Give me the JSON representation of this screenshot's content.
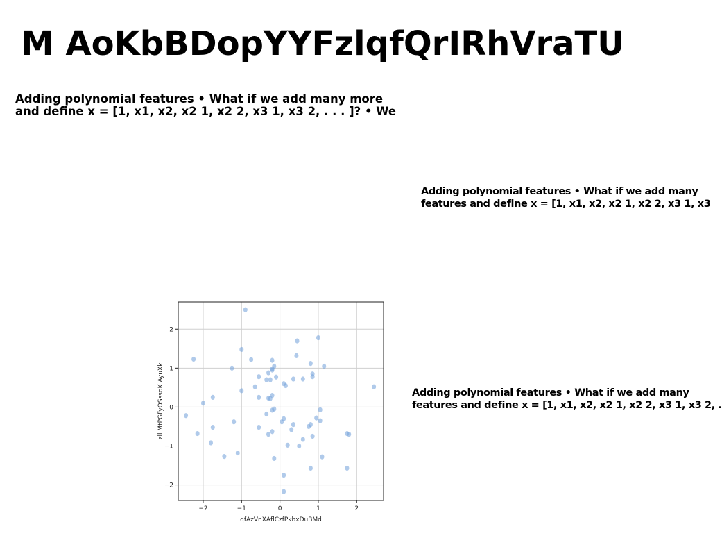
{
  "slide": {
    "title": "M AoKbBDopYYFzlqfQrIRhVraTU"
  },
  "text_blocks": [
    {
      "lines": [
        "Adding polynomial features • What if we add many more",
        "and define x = [1, x1, x2, x2 1, x2 2, x3 1, x3 2, . . . ]? • We"
      ]
    },
    {
      "lines": [
        "Adding polynomial features • What if we add many",
        "features and define x = [1, x1, x2, x2 1, x2 2, x3 1, x3"
      ]
    },
    {
      "lines": [
        "Adding polynomial features • What if we add many",
        "features and define x = [1, x1, x2, x2 1, x2 2, x3 1, x3 2, ."
      ]
    }
  ],
  "chart_data": {
    "type": "scatter",
    "title": "",
    "xlabel": "qfAzVnXAflCzfPkbxDuBMd",
    "ylabel": "zll MtPGFyOSssdK AyuXk",
    "xlim": [
      -2.65,
      2.7
    ],
    "ylim": [
      -2.4,
      2.7
    ],
    "xticks": [
      -2,
      -1,
      0,
      1,
      2
    ],
    "yticks": [
      -2,
      -1,
      0,
      1,
      2
    ],
    "xtick_labels": [
      "−2",
      "−1",
      "0",
      "1",
      "2"
    ],
    "ytick_labels": [
      "−2",
      "−1",
      "0",
      "1",
      "2"
    ],
    "grid": true,
    "marker_color": "#7ba7dc",
    "x": [
      -0.9,
      -1.0,
      -0.75,
      -0.2,
      -0.15,
      -0.2,
      -0.3,
      -0.1,
      -0.2,
      -0.25,
      -0.35,
      0.45,
      1.0,
      0.43,
      0.8,
      1.15,
      0.85,
      0.85,
      0.6,
      0.35,
      0.1,
      0.15,
      -0.55,
      -1.25,
      -0.65,
      -1.0,
      -0.55,
      -0.3,
      -0.25,
      -0.2,
      -0.15,
      -0.2,
      -0.35,
      -2.25,
      -2.0,
      -1.75,
      -2.45,
      -2.15,
      -1.75,
      -1.8,
      -1.2,
      -1.45,
      -1.1,
      -0.55,
      -0.3,
      -0.2,
      -0.15,
      0.1,
      0.05,
      0.3,
      0.35,
      0.2,
      0.5,
      0.6,
      0.75,
      0.8,
      0.95,
      1.05,
      1.05,
      0.85,
      1.1,
      0.8,
      1.75,
      1.8,
      2.45,
      1.75,
      0.1,
      0.1
    ],
    "y": [
      2.5,
      1.48,
      1.22,
      1.2,
      1.05,
      0.95,
      0.88,
      0.77,
      0.98,
      0.7,
      0.7,
      1.7,
      1.78,
      1.32,
      1.12,
      1.05,
      0.85,
      0.78,
      0.72,
      0.72,
      0.6,
      0.55,
      0.78,
      1.0,
      0.52,
      0.42,
      0.25,
      0.23,
      0.22,
      0.3,
      -0.05,
      -0.08,
      -0.18,
      1.23,
      0.1,
      0.25,
      -0.22,
      -0.68,
      -0.52,
      -0.92,
      -0.38,
      -1.27,
      -1.18,
      -0.52,
      -0.7,
      -0.63,
      -1.32,
      -0.3,
      -0.38,
      -0.58,
      -0.45,
      -0.98,
      -1.0,
      -0.83,
      -0.5,
      -0.45,
      -0.28,
      -0.07,
      -0.35,
      -0.75,
      -1.28,
      -1.57,
      -0.68,
      -0.7,
      0.52,
      -1.57,
      -1.75,
      -2.17
    ]
  }
}
